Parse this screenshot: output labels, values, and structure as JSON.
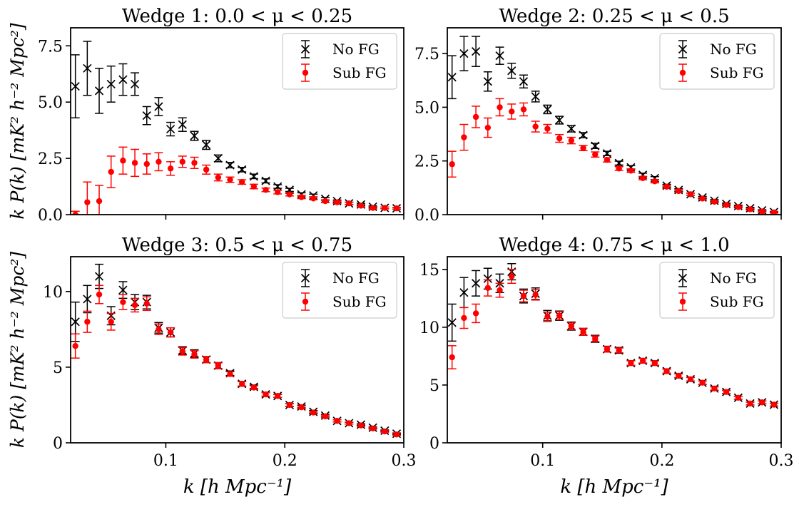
{
  "chart_data": [
    {
      "type": "scatter",
      "title": "Wedge 1: 0.0 < μ < 0.25",
      "xlabel": "",
      "ylabel": "k P(k) [mK² h⁻² Mpc²]",
      "xlim": [
        0.02,
        0.3
      ],
      "ylim": [
        0,
        8.3
      ],
      "yticks": [
        "0.0",
        "2.5",
        "5.0",
        "7.5"
      ],
      "xticks": [],
      "legend": [
        "No FG",
        "Sub FG"
      ],
      "series": [
        {
          "name": "No FG",
          "x": [
            0.024,
            0.034,
            0.044,
            0.054,
            0.064,
            0.074,
            0.084,
            0.094,
            0.104,
            0.114,
            0.124,
            0.134,
            0.144,
            0.154,
            0.164,
            0.174,
            0.184,
            0.194,
            0.204,
            0.214,
            0.224,
            0.234,
            0.244,
            0.254,
            0.264,
            0.274,
            0.284,
            0.294
          ],
          "y": [
            5.7,
            6.5,
            5.5,
            5.8,
            6.0,
            5.8,
            4.4,
            4.8,
            3.8,
            4.0,
            3.5,
            3.1,
            2.5,
            2.2,
            2.0,
            1.7,
            1.5,
            1.25,
            1.1,
            0.9,
            0.85,
            0.7,
            0.6,
            0.5,
            0.45,
            0.35,
            0.3,
            0.28
          ],
          "err": [
            1.4,
            1.2,
            1.0,
            0.8,
            0.7,
            0.5,
            0.4,
            0.4,
            0.3,
            0.3,
            0.2,
            0.2,
            0.15,
            0.12,
            0.1,
            0.1,
            0.09,
            0.08,
            0.07,
            0.07,
            0.06,
            0.06,
            0.05,
            0.05,
            0.05,
            0.04,
            0.04,
            0.04
          ]
        },
        {
          "name": "Sub FG",
          "x": [
            0.024,
            0.034,
            0.044,
            0.054,
            0.064,
            0.074,
            0.084,
            0.094,
            0.104,
            0.114,
            0.124,
            0.134,
            0.144,
            0.154,
            0.164,
            0.174,
            0.184,
            0.194,
            0.204,
            0.214,
            0.224,
            0.234,
            0.244,
            0.254,
            0.264,
            0.274,
            0.284,
            0.294
          ],
          "y": [
            0.0,
            0.55,
            0.6,
            1.9,
            2.4,
            2.3,
            2.25,
            2.35,
            2.05,
            2.35,
            2.3,
            2.0,
            1.65,
            1.55,
            1.45,
            1.25,
            1.1,
            1.0,
            0.9,
            0.78,
            0.72,
            0.6,
            0.55,
            0.5,
            0.4,
            0.3,
            0.3,
            0.28
          ],
          "err": [
            0.15,
            0.9,
            0.7,
            0.7,
            0.6,
            0.6,
            0.45,
            0.4,
            0.3,
            0.25,
            0.25,
            0.2,
            0.15,
            0.12,
            0.1,
            0.1,
            0.08,
            0.08,
            0.07,
            0.07,
            0.06,
            0.06,
            0.05,
            0.05,
            0.05,
            0.04,
            0.04,
            0.04
          ]
        }
      ]
    },
    {
      "type": "scatter",
      "title": "Wedge 2: 0.25 < μ < 0.5",
      "xlabel": "",
      "ylabel": "",
      "xlim": [
        0.02,
        0.3
      ],
      "ylim": [
        0,
        8.7
      ],
      "yticks": [
        "0.0",
        "2.5",
        "5.0",
        "7.5"
      ],
      "xticks": [],
      "legend": [
        "No FG",
        "Sub FG"
      ],
      "series": [
        {
          "name": "No FG",
          "x": [
            0.024,
            0.034,
            0.044,
            0.054,
            0.064,
            0.074,
            0.084,
            0.094,
            0.104,
            0.114,
            0.124,
            0.134,
            0.144,
            0.154,
            0.164,
            0.174,
            0.184,
            0.194,
            0.204,
            0.214,
            0.224,
            0.234,
            0.244,
            0.254,
            0.264,
            0.274,
            0.284,
            0.294
          ],
          "y": [
            6.4,
            7.5,
            7.6,
            6.2,
            7.4,
            6.7,
            6.2,
            5.5,
            4.9,
            4.4,
            4.0,
            3.7,
            3.2,
            2.85,
            2.4,
            2.2,
            1.85,
            1.7,
            1.35,
            1.15,
            0.95,
            0.8,
            0.65,
            0.5,
            0.4,
            0.3,
            0.2,
            0.12
          ],
          "err": [
            1.0,
            0.8,
            0.7,
            0.45,
            0.4,
            0.35,
            0.3,
            0.25,
            0.2,
            0.18,
            0.15,
            0.12,
            0.12,
            0.1,
            0.09,
            0.08,
            0.08,
            0.07,
            0.06,
            0.06,
            0.05,
            0.05,
            0.05,
            0.04,
            0.04,
            0.04,
            0.03,
            0.03
          ]
        },
        {
          "name": "Sub FG",
          "x": [
            0.024,
            0.034,
            0.044,
            0.054,
            0.064,
            0.074,
            0.084,
            0.094,
            0.104,
            0.114,
            0.124,
            0.134,
            0.144,
            0.154,
            0.164,
            0.174,
            0.184,
            0.194,
            0.204,
            0.214,
            0.224,
            0.234,
            0.244,
            0.254,
            0.264,
            0.274,
            0.284,
            0.294
          ],
          "y": [
            2.35,
            3.6,
            4.55,
            4.05,
            5.0,
            4.8,
            4.9,
            4.1,
            4.0,
            3.55,
            3.45,
            3.1,
            2.8,
            2.55,
            2.15,
            2.05,
            1.7,
            1.55,
            1.3,
            1.1,
            0.95,
            0.75,
            0.6,
            0.45,
            0.35,
            0.25,
            0.15,
            0.1
          ],
          "err": [
            0.6,
            0.6,
            0.5,
            0.45,
            0.4,
            0.35,
            0.3,
            0.25,
            0.2,
            0.18,
            0.15,
            0.12,
            0.12,
            0.1,
            0.09,
            0.08,
            0.08,
            0.07,
            0.06,
            0.06,
            0.05,
            0.05,
            0.05,
            0.04,
            0.04,
            0.04,
            0.03,
            0.03
          ]
        }
      ]
    },
    {
      "type": "scatter",
      "title": "Wedge 3: 0.5 < μ < 0.75",
      "xlabel": "k [h Mpc⁻¹]",
      "ylabel": "k P(k) [mK² h⁻² Mpc²]",
      "xlim": [
        0.02,
        0.3
      ],
      "ylim": [
        0,
        12.3
      ],
      "yticks": [
        "0",
        "5",
        "10"
      ],
      "xticks": [
        "0.1",
        "0.2",
        "0.3"
      ],
      "legend": [
        "No FG",
        "Sub FG"
      ],
      "series": [
        {
          "name": "No FG",
          "x": [
            0.024,
            0.034,
            0.044,
            0.054,
            0.064,
            0.074,
            0.084,
            0.094,
            0.104,
            0.114,
            0.124,
            0.134,
            0.144,
            0.154,
            0.164,
            0.174,
            0.184,
            0.194,
            0.204,
            0.214,
            0.224,
            0.234,
            0.244,
            0.254,
            0.264,
            0.274,
            0.284,
            0.294
          ],
          "y": [
            8.0,
            9.5,
            11.0,
            8.4,
            10.1,
            9.3,
            9.3,
            7.6,
            7.3,
            6.1,
            5.9,
            5.5,
            5.1,
            4.6,
            3.9,
            3.7,
            3.2,
            3.1,
            2.5,
            2.4,
            2.05,
            1.8,
            1.45,
            1.3,
            1.2,
            1.0,
            0.8,
            0.6
          ],
          "err": [
            1.3,
            0.9,
            0.8,
            0.6,
            0.55,
            0.5,
            0.45,
            0.35,
            0.3,
            0.25,
            0.25,
            0.2,
            0.2,
            0.15,
            0.15,
            0.12,
            0.12,
            0.1,
            0.1,
            0.09,
            0.08,
            0.08,
            0.07,
            0.06,
            0.06,
            0.05,
            0.05,
            0.05
          ]
        },
        {
          "name": "Sub FG",
          "x": [
            0.024,
            0.034,
            0.044,
            0.054,
            0.064,
            0.074,
            0.084,
            0.094,
            0.104,
            0.114,
            0.124,
            0.134,
            0.144,
            0.154,
            0.164,
            0.174,
            0.184,
            0.194,
            0.204,
            0.214,
            0.224,
            0.234,
            0.244,
            0.254,
            0.264,
            0.274,
            0.284,
            0.294
          ],
          "y": [
            6.4,
            8.0,
            9.8,
            8.0,
            9.3,
            9.1,
            9.2,
            7.5,
            7.3,
            6.05,
            5.85,
            5.5,
            5.1,
            4.55,
            3.9,
            3.65,
            3.2,
            3.1,
            2.5,
            2.35,
            2.0,
            1.75,
            1.45,
            1.3,
            1.15,
            0.95,
            0.75,
            0.55
          ],
          "err": [
            0.8,
            0.7,
            0.6,
            0.55,
            0.5,
            0.45,
            0.45,
            0.35,
            0.3,
            0.25,
            0.25,
            0.2,
            0.2,
            0.15,
            0.15,
            0.12,
            0.12,
            0.1,
            0.1,
            0.09,
            0.08,
            0.08,
            0.07,
            0.06,
            0.06,
            0.05,
            0.05,
            0.05
          ]
        }
      ]
    },
    {
      "type": "scatter",
      "title": "Wedge 4: 0.75 < μ < 1.0",
      "xlabel": "k [h Mpc⁻¹]",
      "ylabel": "",
      "xlim": [
        0.02,
        0.3
      ],
      "ylim": [
        0,
        16.1
      ],
      "yticks": [
        "0",
        "5",
        "10",
        "15"
      ],
      "xticks": [
        "0.1",
        "0.2",
        "0.3"
      ],
      "legend": [
        "No FG",
        "Sub FG"
      ],
      "series": [
        {
          "name": "No FG",
          "x": [
            0.024,
            0.034,
            0.044,
            0.054,
            0.064,
            0.074,
            0.084,
            0.094,
            0.104,
            0.114,
            0.124,
            0.134,
            0.144,
            0.154,
            0.164,
            0.174,
            0.184,
            0.194,
            0.204,
            0.214,
            0.224,
            0.234,
            0.244,
            0.254,
            0.264,
            0.274,
            0.284,
            0.294
          ],
          "y": [
            10.4,
            13.0,
            13.8,
            14.2,
            13.8,
            14.8,
            12.7,
            12.9,
            11.0,
            11.0,
            10.1,
            9.6,
            9.0,
            8.1,
            8.0,
            6.9,
            7.1,
            6.9,
            6.2,
            5.8,
            5.5,
            5.2,
            4.7,
            4.4,
            3.9,
            3.4,
            3.5,
            3.3
          ],
          "err": [
            1.6,
            1.3,
            1.1,
            0.9,
            0.8,
            0.7,
            0.6,
            0.5,
            0.45,
            0.4,
            0.35,
            0.3,
            0.3,
            0.25,
            0.25,
            0.2,
            0.2,
            0.2,
            0.18,
            0.18,
            0.16,
            0.15,
            0.15,
            0.14,
            0.13,
            0.12,
            0.12,
            0.12
          ]
        },
        {
          "name": "Sub FG",
          "x": [
            0.024,
            0.034,
            0.044,
            0.054,
            0.064,
            0.074,
            0.084,
            0.094,
            0.104,
            0.114,
            0.124,
            0.134,
            0.144,
            0.154,
            0.164,
            0.174,
            0.184,
            0.194,
            0.204,
            0.214,
            0.224,
            0.234,
            0.244,
            0.254,
            0.264,
            0.274,
            0.284,
            0.294
          ],
          "y": [
            7.4,
            10.8,
            11.2,
            13.4,
            13.2,
            14.4,
            12.7,
            12.8,
            10.9,
            11.0,
            10.1,
            9.6,
            9.0,
            8.1,
            8.0,
            6.9,
            7.1,
            6.9,
            6.2,
            5.8,
            5.5,
            5.2,
            4.7,
            4.4,
            3.9,
            3.4,
            3.5,
            3.3
          ],
          "err": [
            1.0,
            0.9,
            0.8,
            0.7,
            0.6,
            0.6,
            0.5,
            0.45,
            0.4,
            0.35,
            0.3,
            0.3,
            0.25,
            0.25,
            0.2,
            0.2,
            0.2,
            0.18,
            0.18,
            0.16,
            0.15,
            0.15,
            0.14,
            0.13,
            0.12,
            0.12,
            0.12,
            0.12
          ]
        }
      ]
    }
  ]
}
